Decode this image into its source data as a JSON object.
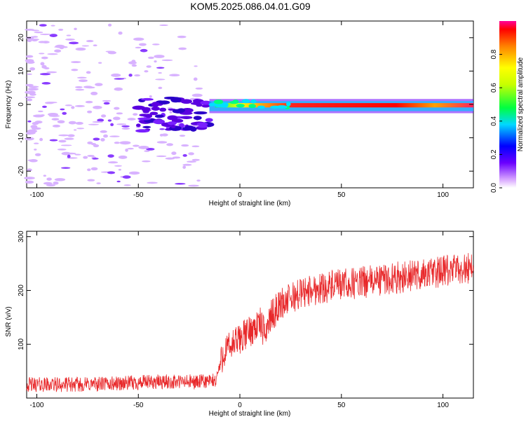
{
  "title": "KOM5.2025.086.04.01.G09",
  "chart_data": [
    {
      "type": "heatmap",
      "xlabel": "Height of straight line (km)",
      "ylabel": "Frequency (Hz)",
      "xlim": [
        -105,
        115
      ],
      "ylim": [
        -25,
        25
      ],
      "xticks": [
        -100,
        -50,
        0,
        50,
        100
      ],
      "yticks": [
        -20,
        -10,
        0,
        10,
        20
      ],
      "colorbar": {
        "label": "Normalized spectral amplitude",
        "range": [
          0,
          1
        ],
        "ticks": [
          0.0,
          0.2,
          0.4,
          0.6,
          0.8
        ]
      },
      "features": [
        {
          "desc": "weak scattered noise",
          "x": [
            -105,
            -20
          ],
          "y": [
            -25,
            25
          ],
          "amplitude": 0.1
        },
        {
          "desc": "blob cluster",
          "x": [
            -50,
            -15
          ],
          "y": [
            -8,
            2
          ],
          "amplitude": 0.2
        },
        {
          "desc": "signal band",
          "x": [
            -15,
            115
          ],
          "y": [
            -2,
            1
          ],
          "amplitude": 0.8
        }
      ]
    },
    {
      "type": "line",
      "xlabel": "Height of straight line (km)",
      "ylabel": "SNR (v/v)",
      "xlim": [
        -105,
        115
      ],
      "ylim": [
        0,
        310
      ],
      "xticks": [
        -100,
        -50,
        0,
        50,
        100
      ],
      "yticks": [
        100,
        200,
        300
      ],
      "color": "#e8282a",
      "series": [
        {
          "x": [
            -105,
            -80,
            -60,
            -40,
            -20,
            -12,
            -8,
            0,
            5,
            10,
            12,
            15,
            20,
            30,
            40,
            50,
            60,
            70,
            80,
            90,
            100,
            110,
            115
          ],
          "values": [
            25,
            25,
            27,
            30,
            30,
            32,
            85,
            110,
            125,
            140,
            120,
            150,
            175,
            195,
            205,
            210,
            215,
            220,
            225,
            230,
            235,
            240,
            245
          ]
        }
      ]
    }
  ]
}
